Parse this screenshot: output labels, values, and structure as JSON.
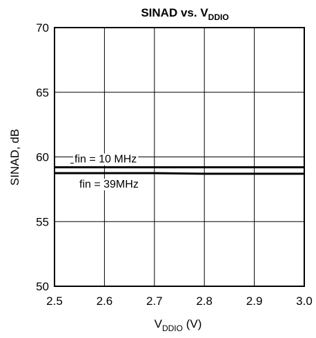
{
  "chart_data": {
    "type": "line",
    "title": {
      "main": "SINAD vs. V",
      "sub": "DDIO"
    },
    "xlabel": {
      "main": "V",
      "sub": "DDIO",
      "rest": " (V)"
    },
    "ylabel": "SINAD, dB",
    "xlim": [
      2.5,
      3.0
    ],
    "ylim": [
      50,
      70
    ],
    "xticks": [
      2.5,
      2.6,
      2.7,
      2.8,
      2.9,
      3.0
    ],
    "xtick_labels": [
      "2.5",
      "2.6",
      "2.7",
      "2.8",
      "2.9",
      "3.0"
    ],
    "yticks": [
      50,
      55,
      60,
      65,
      70
    ],
    "ytick_labels": [
      "50",
      "55",
      "60",
      "65",
      "70"
    ],
    "grid": true,
    "series": [
      {
        "name": "fin = 10 MHz",
        "x": [
          2.5,
          2.6,
          2.7,
          2.8,
          2.9,
          3.0
        ],
        "y": [
          59.2,
          59.2,
          59.2,
          59.2,
          59.2,
          59.2
        ]
      },
      {
        "name": "fin = 39MHz",
        "x": [
          2.5,
          2.6,
          2.7,
          2.8,
          2.9,
          3.0
        ],
        "y": [
          58.75,
          58.75,
          58.75,
          58.7,
          58.7,
          58.7
        ]
      }
    ],
    "annotations": [
      {
        "text": "fin = 10 MHz",
        "series": 0,
        "position": "above"
      },
      {
        "text": "fin = 39MHz",
        "series": 1,
        "position": "below"
      }
    ]
  }
}
